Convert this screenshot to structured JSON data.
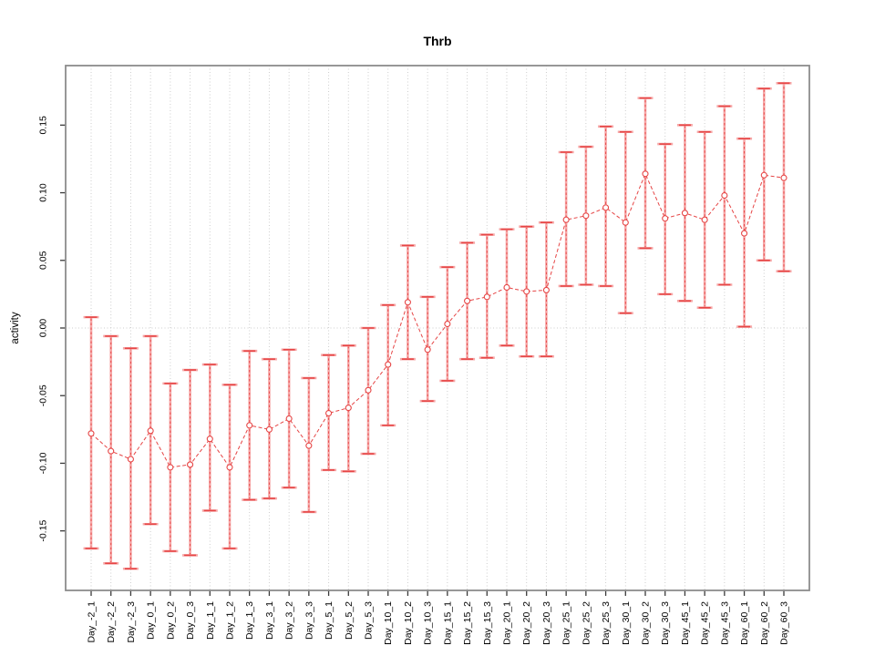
{
  "chart_data": {
    "type": "scatter",
    "subtype": "points-with-error-bars",
    "title": "Thrb",
    "xlabel": "",
    "ylabel": "activity",
    "legend_position": "none",
    "grid": {
      "vertical_dotted_per_category": true,
      "horizontal_dotted_at_zero": true
    },
    "ylim": [
      -0.194,
      0.194
    ],
    "yticks": [
      -0.15,
      -0.1,
      -0.05,
      0.0,
      0.05,
      0.1,
      0.15
    ],
    "ytick_labels": [
      "-0.15",
      "-0.10",
      "-0.05",
      "0.00",
      "0.05",
      "0.10",
      "0.15"
    ],
    "categories": [
      "Day_-2_1",
      "Day_-2_2",
      "Day_-2_3",
      "Day_0_1",
      "Day_0_2",
      "Day_0_3",
      "Day_1_1",
      "Day_1_2",
      "Day_1_3",
      "Day_3_1",
      "Day_3_2",
      "Day_3_3",
      "Day_5_1",
      "Day_5_2",
      "Day_5_3",
      "Day_10_1",
      "Day_10_2",
      "Day_10_3",
      "Day_15_1",
      "Day_15_2",
      "Day_15_3",
      "Day_20_1",
      "Day_20_2",
      "Day_20_3",
      "Day_25_1",
      "Day_25_2",
      "Day_25_3",
      "Day_30_1",
      "Day_30_2",
      "Day_30_3",
      "Day_45_1",
      "Day_45_2",
      "Day_45_3",
      "Day_60_1",
      "Day_60_2",
      "Day_60_3"
    ],
    "series": [
      {
        "name": "activity",
        "marker": "open-circle",
        "line_style": "dashed",
        "values": [
          -0.078,
          -0.091,
          -0.097,
          -0.076,
          -0.103,
          -0.101,
          -0.082,
          -0.103,
          -0.072,
          -0.075,
          -0.067,
          -0.087,
          -0.063,
          -0.059,
          -0.046,
          -0.027,
          0.019,
          -0.016,
          0.003,
          0.02,
          0.023,
          0.03,
          0.027,
          0.028,
          0.08,
          0.083,
          0.089,
          0.078,
          0.114,
          0.081,
          0.085,
          0.08,
          0.098,
          0.07,
          0.113,
          0.111
        ],
        "lower": [
          -0.163,
          -0.174,
          -0.178,
          -0.145,
          -0.165,
          -0.168,
          -0.135,
          -0.163,
          -0.127,
          -0.126,
          -0.118,
          -0.136,
          -0.105,
          -0.106,
          -0.093,
          -0.072,
          -0.023,
          -0.054,
          -0.039,
          -0.023,
          -0.022,
          -0.013,
          -0.021,
          -0.021,
          0.031,
          0.032,
          0.031,
          0.011,
          0.059,
          0.025,
          0.02,
          0.015,
          0.032,
          0.001,
          0.05,
          0.042
        ],
        "upper": [
          0.008,
          -0.006,
          -0.015,
          -0.006,
          -0.041,
          -0.031,
          -0.027,
          -0.042,
          -0.017,
          -0.023,
          -0.016,
          -0.037,
          -0.02,
          -0.013,
          0.0,
          0.017,
          0.061,
          0.023,
          0.045,
          0.063,
          0.069,
          0.073,
          0.075,
          0.078,
          0.13,
          0.134,
          0.149,
          0.145,
          0.17,
          0.136,
          0.15,
          0.145,
          0.164,
          0.14,
          0.177,
          0.181
        ]
      }
    ],
    "colors": {
      "series": "#e64545",
      "series_light": "#f6a8a8",
      "grid": "#cdcdcd",
      "box": "#8c8c8c",
      "tick": "#3a3a3a",
      "text": "#000000",
      "background": "#ffffff"
    }
  }
}
